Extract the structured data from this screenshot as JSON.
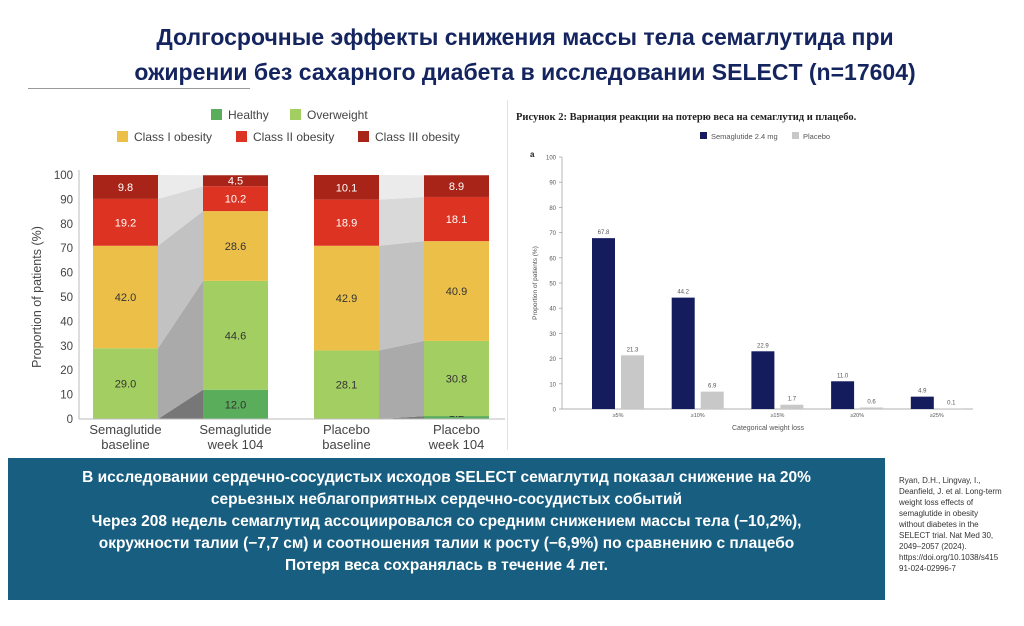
{
  "slide": {
    "title_lines": [
      "Долгосрочные эффекты снижения массы тела семаглутида при",
      "ожирении без сахарного диабета в исследовании SELECT (n=17604)"
    ],
    "summary_lines": [
      "В исследовании сердечно-сосудистых исходов SELECT семаглутид показал снижение на 20%",
      "серьезных неблагоприятных сердечно-сосудистых событий",
      "Через 208 недель семаглутид ассоциировался со средним снижением массы тела (−10,2%),",
      "окружности талии (−7,7 см) и соотношения талии к росту (−6,9%) по сравнению с плацебо",
      "Потеря веса сохранялась в течение 4 лет."
    ],
    "reference_lines": [
      "Ryan, D.H., Lingvay, I.,",
      "Deanfield, J. et al. Long-term",
      "weight loss effects of",
      "semaglutide in obesity",
      "without diabetes in the",
      "SELECT trial. Nat Med 30,",
      "2049–2057 (2024).",
      "https://doi.org/10.1038/s415",
      "91-024-02996-7"
    ],
    "colors": {
      "title": "#14245e",
      "summary_box": "#175e80"
    }
  },
  "chart_data": [
    {
      "type": "bar",
      "stacked": true,
      "title": "",
      "xlabel": "",
      "ylabel": "Proportion of patients (%)",
      "ylim": [
        0,
        100
      ],
      "yticks": [
        0,
        10,
        20,
        30,
        40,
        50,
        60,
        70,
        80,
        90,
        100
      ],
      "legend": "top",
      "categories": [
        "Semaglutide\nbaseline",
        "Semaglutide\nweek 104",
        "Placebo\nbaseline",
        "Placebo\nweek 104"
      ],
      "series": [
        {
          "name": "Healthy",
          "color": "#5aad5a",
          "values": [
            0.0,
            12.0,
            0.0,
            1.2
          ]
        },
        {
          "name": "Overweight",
          "color": "#a3cf62",
          "values": [
            29.0,
            44.6,
            28.1,
            30.8
          ]
        },
        {
          "name": "Class I obesity",
          "color": "#ecc048",
          "values": [
            42.0,
            28.6,
            42.9,
            40.9
          ]
        },
        {
          "name": "Class II obesity",
          "color": "#dd3322",
          "values": [
            19.2,
            10.2,
            18.9,
            18.1
          ]
        },
        {
          "name": "Class III obesity",
          "color": "#a82418",
          "values": [
            9.8,
            4.5,
            10.1,
            8.9
          ]
        }
      ],
      "connector_colors": [
        "#777777",
        "#aaaaaa",
        "#c2c2c2",
        "#d9d9d9",
        "#ebebeb"
      ]
    },
    {
      "type": "bar",
      "title": "Рисунок 2: Вариация реакции на потерю веса на семаглутид и плацебо.",
      "panel_label": "a",
      "xlabel": "Categorical weight loss",
      "ylabel": "Proportion of patients (%)",
      "ylim": [
        0,
        100
      ],
      "yticks": [
        0,
        10,
        20,
        30,
        40,
        50,
        60,
        70,
        80,
        90,
        100
      ],
      "legend": "top",
      "categories": [
        "≥5%",
        "≥10%",
        "≥15%",
        "≥20%",
        "≥25%"
      ],
      "series": [
        {
          "name": "Semaglutide 2.4 mg",
          "color": "#141c5e",
          "values": [
            67.8,
            44.2,
            22.9,
            11.0,
            4.9
          ]
        },
        {
          "name": "Placebo",
          "color": "#c8c8c8",
          "values": [
            21.3,
            6.9,
            1.7,
            0.6,
            0.1
          ]
        }
      ]
    }
  ]
}
